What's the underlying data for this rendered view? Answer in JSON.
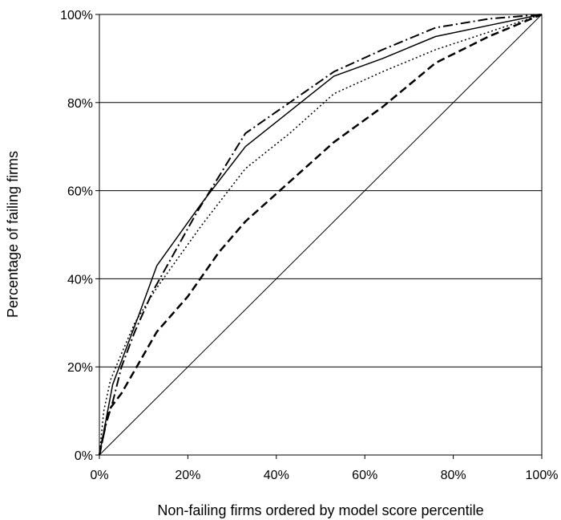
{
  "chart_data": {
    "type": "line",
    "title": "",
    "xlabel": "Non-failing firms ordered by model score percentile",
    "ylabel": "Percentage of failing firms",
    "xlim": [
      0,
      100
    ],
    "ylim": [
      0,
      100
    ],
    "x_ticks": [
      "0%",
      "20%",
      "40%",
      "60%",
      "80%",
      "100%"
    ],
    "y_ticks": [
      "0%",
      "20%",
      "40%",
      "60%",
      "80%",
      "100%"
    ],
    "grid": "horizontal",
    "legend": "none",
    "series": [
      {
        "style": "solid",
        "color": "#000000",
        "points": [
          [
            0,
            0
          ],
          [
            1.5,
            8
          ],
          [
            3,
            16
          ],
          [
            6,
            24
          ],
          [
            9,
            32
          ],
          [
            13,
            43
          ],
          [
            23,
            57
          ],
          [
            33,
            70
          ],
          [
            43,
            78
          ],
          [
            53,
            86
          ],
          [
            64,
            90
          ],
          [
            76,
            95
          ],
          [
            88,
            97.5
          ],
          [
            100,
            100
          ]
        ]
      },
      {
        "style": "dash-dot",
        "color": "#000000",
        "points": [
          [
            0,
            0
          ],
          [
            1.5,
            7
          ],
          [
            3,
            12
          ],
          [
            5,
            20
          ],
          [
            8,
            28
          ],
          [
            12,
            37
          ],
          [
            22,
            55
          ],
          [
            33,
            73
          ],
          [
            43,
            80
          ],
          [
            53,
            87
          ],
          [
            64,
            92
          ],
          [
            76,
            97
          ],
          [
            88,
            99
          ],
          [
            100,
            100
          ]
        ]
      },
      {
        "style": "dotted",
        "color": "#000000",
        "points": [
          [
            0,
            0
          ],
          [
            1,
            10
          ],
          [
            2.5,
            17
          ],
          [
            5,
            23
          ],
          [
            8,
            30
          ],
          [
            13,
            38
          ],
          [
            23,
            52
          ],
          [
            33,
            65
          ],
          [
            43,
            73
          ],
          [
            53,
            82
          ],
          [
            64,
            87
          ],
          [
            76,
            92
          ],
          [
            88,
            96
          ],
          [
            100,
            100
          ]
        ]
      },
      {
        "style": "dashed",
        "color": "#000000",
        "points": [
          [
            0,
            0
          ],
          [
            2,
            10
          ],
          [
            5,
            14
          ],
          [
            9,
            21
          ],
          [
            13,
            28
          ],
          [
            20,
            36
          ],
          [
            27,
            46
          ],
          [
            33,
            53
          ],
          [
            43,
            62
          ],
          [
            53,
            71
          ],
          [
            64,
            79
          ],
          [
            76,
            89
          ],
          [
            88,
            95
          ],
          [
            100,
            100
          ]
        ]
      },
      {
        "style": "diagonal",
        "color": "#000000",
        "points": [
          [
            0,
            0
          ],
          [
            100,
            100
          ]
        ]
      }
    ]
  }
}
